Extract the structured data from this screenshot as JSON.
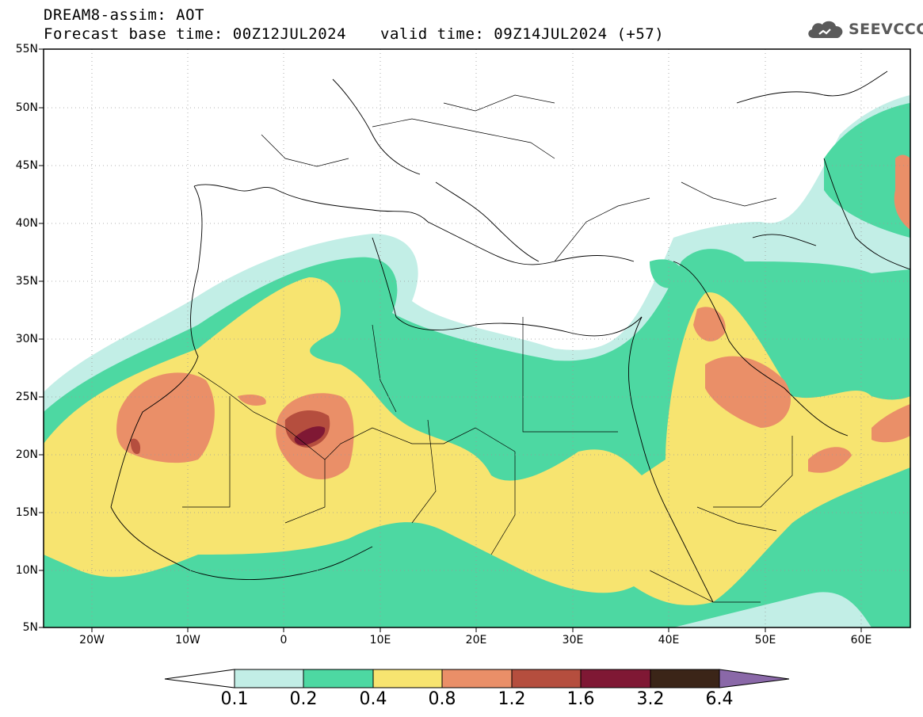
{
  "header": {
    "title": "DREAM8-assim: AOT",
    "base_time": "Forecast base time: 00Z12JUL2024",
    "valid_time": "valid time: 09Z14JUL2024 (+57)"
  },
  "logo": {
    "icon": "cloud-icon",
    "text": "SEEVCCC",
    "color": "#5a5a5a"
  },
  "map": {
    "lat_range": [
      5,
      55
    ],
    "lon_range": [
      -25,
      65
    ],
    "lat_labels": [
      "55N",
      "50N",
      "45N",
      "40N",
      "35N",
      "30N",
      "25N",
      "20N",
      "15N",
      "10N",
      "5N"
    ],
    "lon_labels": [
      "20W",
      "10W",
      "0",
      "10E",
      "20E",
      "30E",
      "40E",
      "50E",
      "60E"
    ]
  },
  "colorbar": {
    "levels": [
      "0.1",
      "0.2",
      "0.4",
      "0.8",
      "1.2",
      "1.6",
      "3.2",
      "6.4"
    ],
    "colors": [
      "#ffffff",
      "#c2eee6",
      "#4dd8a2",
      "#f7e470",
      "#ea8f68",
      "#b54e3e",
      "#7f1834",
      "#3b2518",
      "#8a68a8"
    ]
  }
}
